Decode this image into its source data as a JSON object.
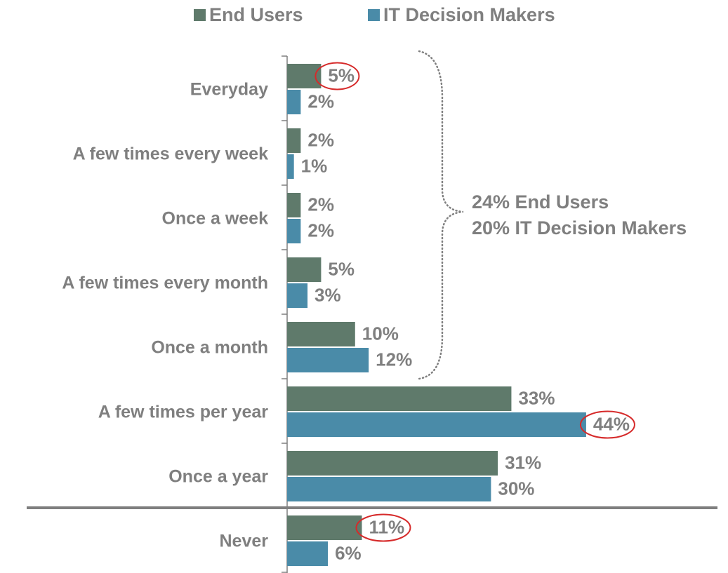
{
  "chart_data": {
    "type": "hbar",
    "categories": [
      "Everyday",
      "A few times every week",
      "Once a week",
      "A few times every month",
      "Once a month",
      "A few times per year",
      "Once a year",
      "Never"
    ],
    "series": [
      {
        "name": "End Users",
        "color": "#5f7a6b",
        "values": [
          5,
          2,
          2,
          5,
          10,
          33,
          31,
          11
        ],
        "value_labels": [
          "5%",
          "2%",
          "2%",
          "5%",
          "10%",
          "33%",
          "31%",
          "11%"
        ]
      },
      {
        "name": "IT Decision Makers",
        "color": "#4a8ba8",
        "values": [
          2,
          1,
          2,
          3,
          12,
          44,
          30,
          6
        ],
        "value_labels": [
          "2%",
          "1%",
          "2%",
          "3%",
          "12%",
          "44%",
          "30%",
          "6%"
        ]
      }
    ],
    "xlim": [
      0,
      50
    ],
    "circled": [
      [
        0,
        0
      ],
      [
        1,
        5
      ],
      [
        0,
        7
      ]
    ],
    "annotations": [
      "24% End Users",
      "20% IT Decision Makers"
    ]
  }
}
